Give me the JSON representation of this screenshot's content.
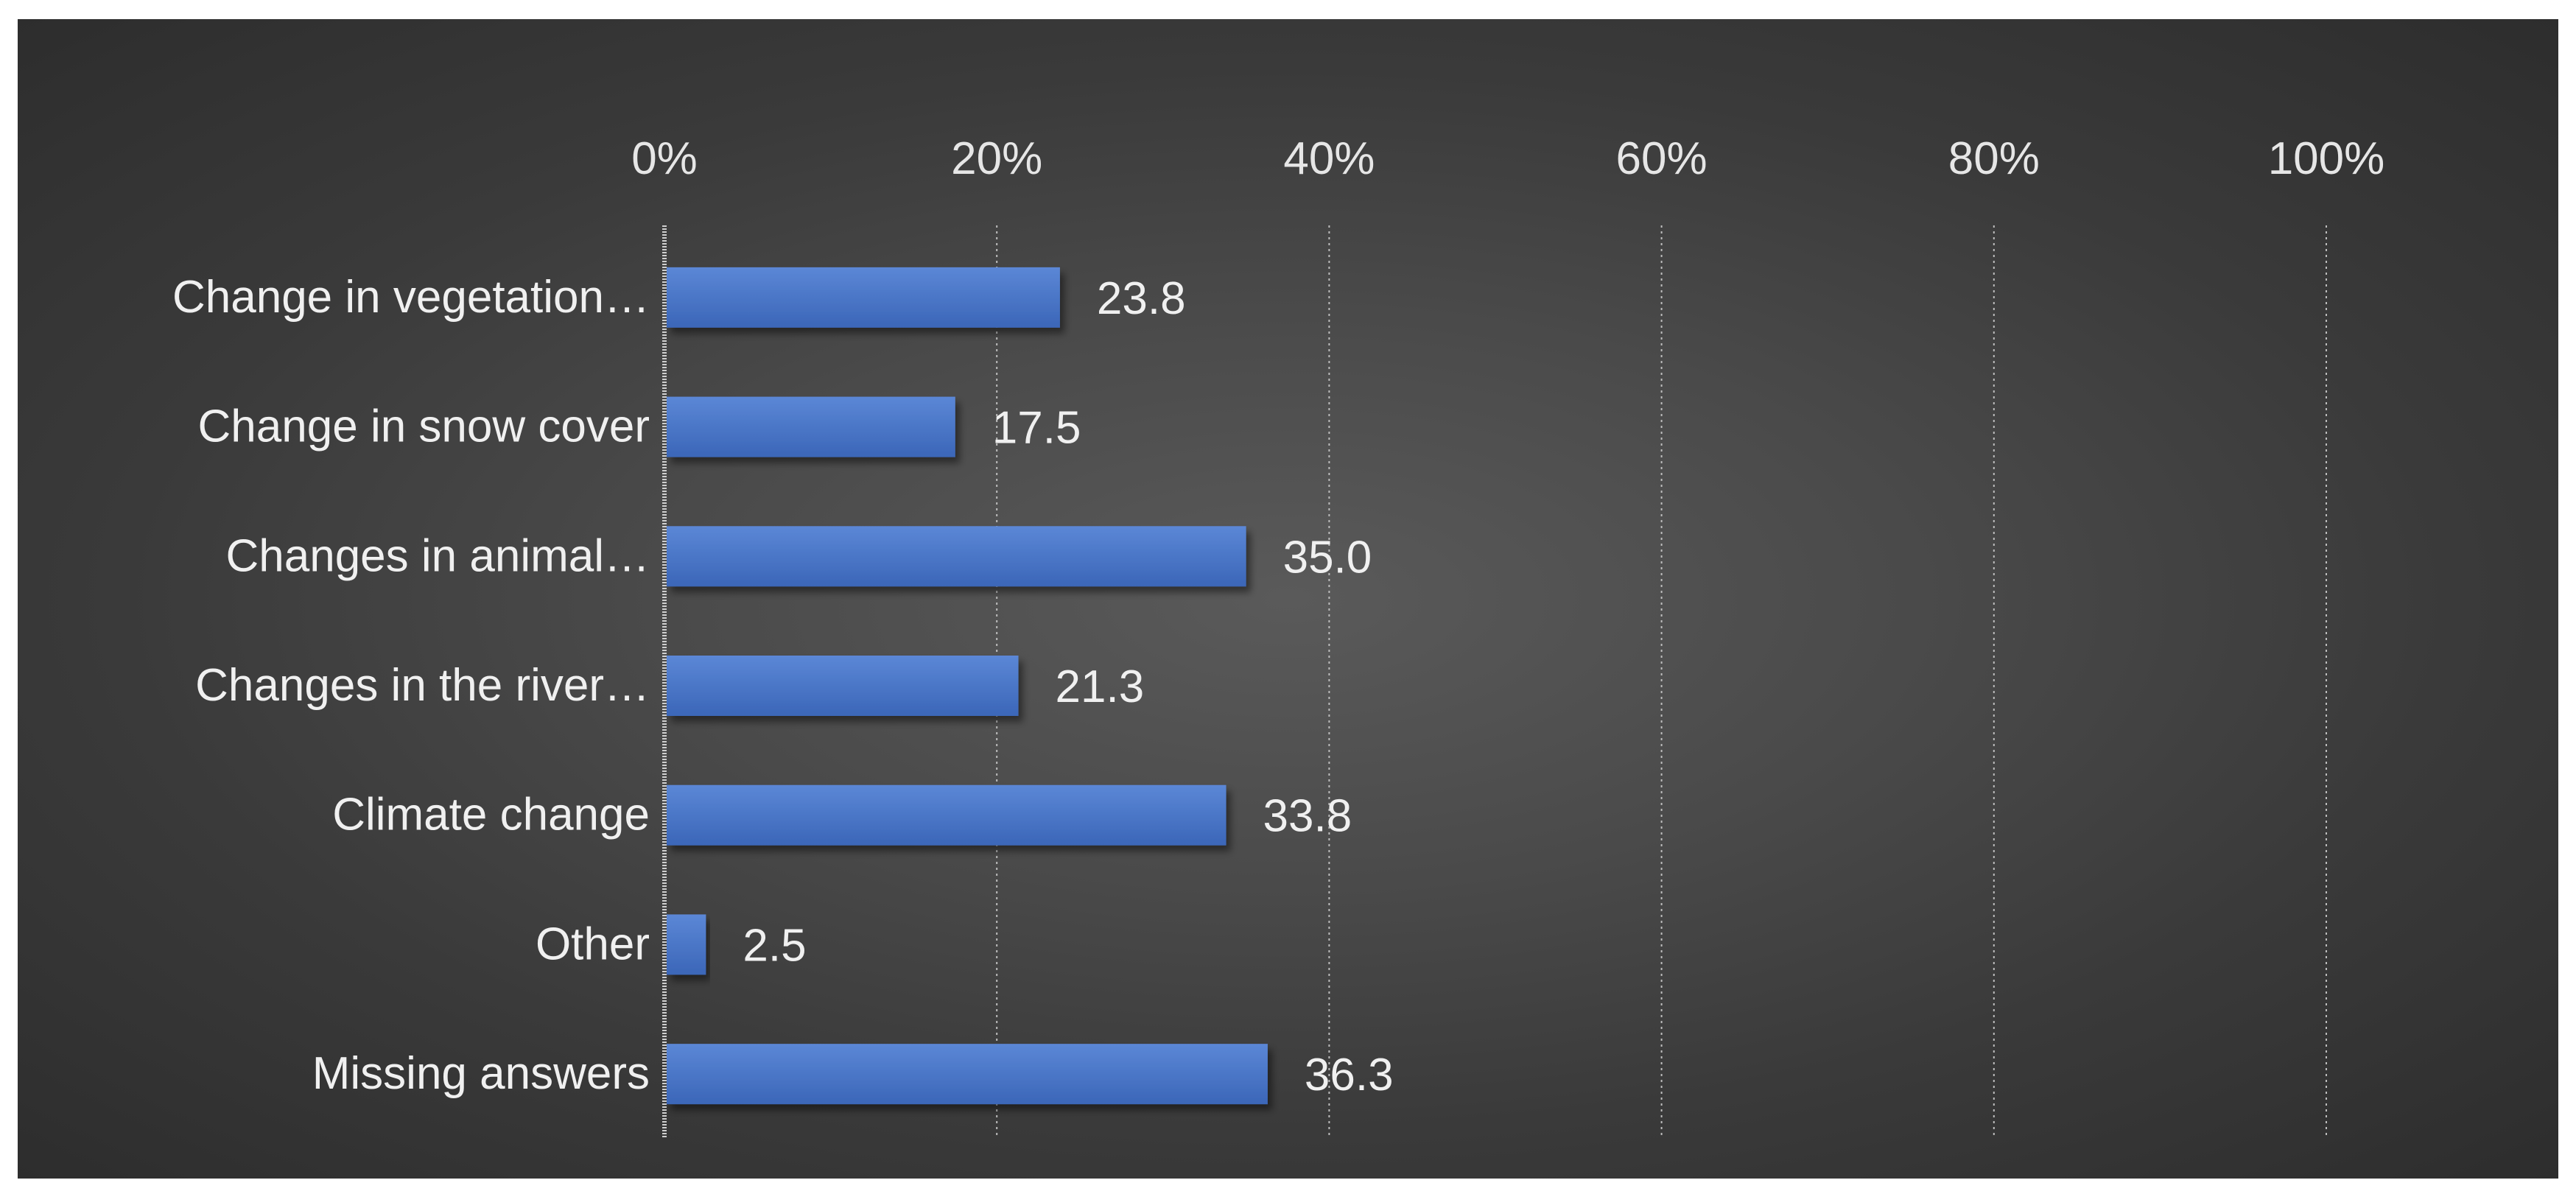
{
  "chart_data": {
    "type": "bar",
    "orientation": "horizontal",
    "categories": [
      "Change in vegetation…",
      "Change in snow cover",
      "Changes in animal…",
      "Changes in the river…",
      "Climate change",
      "Other",
      "Missing answers"
    ],
    "values": [
      23.8,
      17.5,
      35.0,
      21.3,
      33.8,
      2.5,
      36.3
    ],
    "value_labels": [
      "23.8",
      "17.5",
      "35.0",
      "21.3",
      "33.8",
      "2.5",
      "36.3"
    ],
    "xlim": [
      0,
      100
    ],
    "xticks": [
      "0%",
      "20%",
      "40%",
      "60%",
      "80%",
      "100%"
    ],
    "x_axis_position": "top",
    "grid": "vertical dotted",
    "legend": "none",
    "colors": {
      "bar": "#4472c4",
      "bar_light": "#5b87d6",
      "background": "#4a4a4a",
      "text": "#f0f0f0"
    }
  }
}
